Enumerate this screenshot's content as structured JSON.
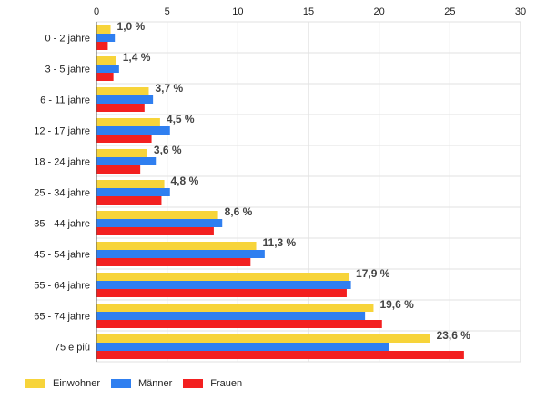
{
  "chart_data": {
    "type": "bar",
    "orientation": "horizontal",
    "categories": [
      "0 - 2 jahre",
      "3 - 5 jahre",
      "6 - 11 jahre",
      "12 - 17 jahre",
      "18 - 24 jahre",
      "25 - 34 jahre",
      "35 - 44 jahre",
      "45 - 54 jahre",
      "55 - 64 jahre",
      "65 - 74 jahre",
      "75 e più"
    ],
    "series": [
      {
        "name": "Einwohner",
        "color": "#f7d43a",
        "values": [
          1.0,
          1.4,
          3.7,
          4.5,
          3.6,
          4.8,
          8.6,
          11.3,
          17.9,
          19.6,
          23.6
        ]
      },
      {
        "name": "Männer",
        "color": "#2f7ff0",
        "values": [
          1.3,
          1.6,
          4.0,
          5.2,
          4.2,
          5.2,
          8.9,
          11.9,
          18.0,
          19.0,
          20.7
        ]
      },
      {
        "name": "Frauen",
        "color": "#f32020",
        "values": [
          0.8,
          1.2,
          3.4,
          3.9,
          3.1,
          4.6,
          8.3,
          10.9,
          17.7,
          20.2,
          26.0
        ]
      }
    ],
    "data_labels": [
      "1,0 %",
      "1,4 %",
      "3,7 %",
      "4,5 %",
      "3,6 %",
      "4,8 %",
      "8,6 %",
      "11,3 %",
      "17,9 %",
      "19,6 %",
      "23,6 %"
    ],
    "xticks": [
      "0",
      "5",
      "10",
      "15",
      "20",
      "25",
      "30"
    ],
    "xlim": [
      0,
      30
    ],
    "title": "",
    "xlabel": "",
    "ylabel": "",
    "grid": true,
    "axis_position": "top",
    "legend_position": "bottom-left"
  }
}
